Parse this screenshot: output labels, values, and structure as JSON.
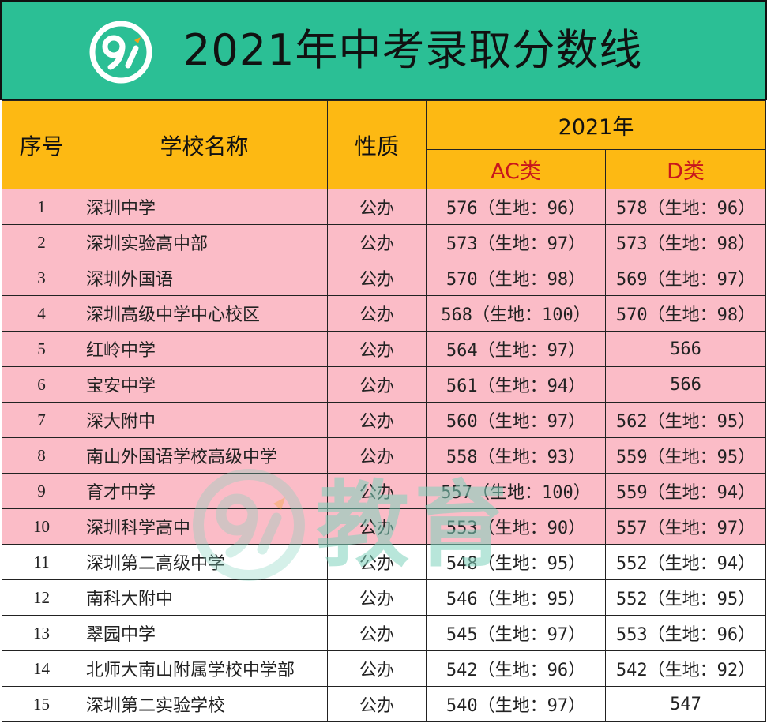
{
  "title": "2021年中考录取分数线",
  "watermark": "教育",
  "colors": {
    "banner": "#2bbf95",
    "header": "#fdb913",
    "highlight_rows": "#fbbcc7",
    "subheader_text": "#c8161d"
  },
  "headers": {
    "index": "序号",
    "school": "学校名称",
    "type": "性质",
    "year": "2021年",
    "ac": "AC类",
    "d": "D类"
  },
  "rows": [
    {
      "index": "1",
      "school": "深圳中学",
      "type": "公办",
      "ac": "576（生地：96）",
      "d": "578（生地：96）"
    },
    {
      "index": "2",
      "school": "深圳实验高中部",
      "type": "公办",
      "ac": "573（生地：97）",
      "d": "573（生地：98）"
    },
    {
      "index": "3",
      "school": "深圳外国语",
      "type": "公办",
      "ac": "570（生地：98）",
      "d": "569（生地：97）"
    },
    {
      "index": "4",
      "school": "深圳高级中学中心校区",
      "type": "公办",
      "ac": "568（生地：100）",
      "d": "570（生地：98）"
    },
    {
      "index": "5",
      "school": "红岭中学",
      "type": "公办",
      "ac": "564（生地：97）",
      "d": "566"
    },
    {
      "index": "6",
      "school": "宝安中学",
      "type": "公办",
      "ac": "561（生地：94）",
      "d": "566"
    },
    {
      "index": "7",
      "school": "深大附中",
      "type": "公办",
      "ac": "560（生地：97）",
      "d": "562（生地：95）"
    },
    {
      "index": "8",
      "school": "南山外国语学校高级中学",
      "type": "公办",
      "ac": "558（生地：93）",
      "d": "559（生地：95）"
    },
    {
      "index": "9",
      "school": "育才中学",
      "type": "公办",
      "ac": "557（生地：100）",
      "d": "559（生地：94）"
    },
    {
      "index": "10",
      "school": "深圳科学高中",
      "type": "公办",
      "ac": "553（生地：90）",
      "d": "557（生地：97）"
    },
    {
      "index": "11",
      "school": "深圳第二高级中学",
      "type": "公办",
      "ac": "548（生地：95）",
      "d": "552（生地：94）"
    },
    {
      "index": "12",
      "school": "南科大附中",
      "type": "公办",
      "ac": "546（生地：95）",
      "d": "552（生地：95）"
    },
    {
      "index": "13",
      "school": "翠园中学",
      "type": "公办",
      "ac": "545（生地：97）",
      "d": "553（生地：96）"
    },
    {
      "index": "14",
      "school": "北师大南山附属学校中学部",
      "type": "公办",
      "ac": "542（生地：96）",
      "d": "542（生地：92）"
    },
    {
      "index": "15",
      "school": "深圳第二实验学校",
      "type": "公办",
      "ac": "540（生地：97）",
      "d": "547"
    }
  ]
}
